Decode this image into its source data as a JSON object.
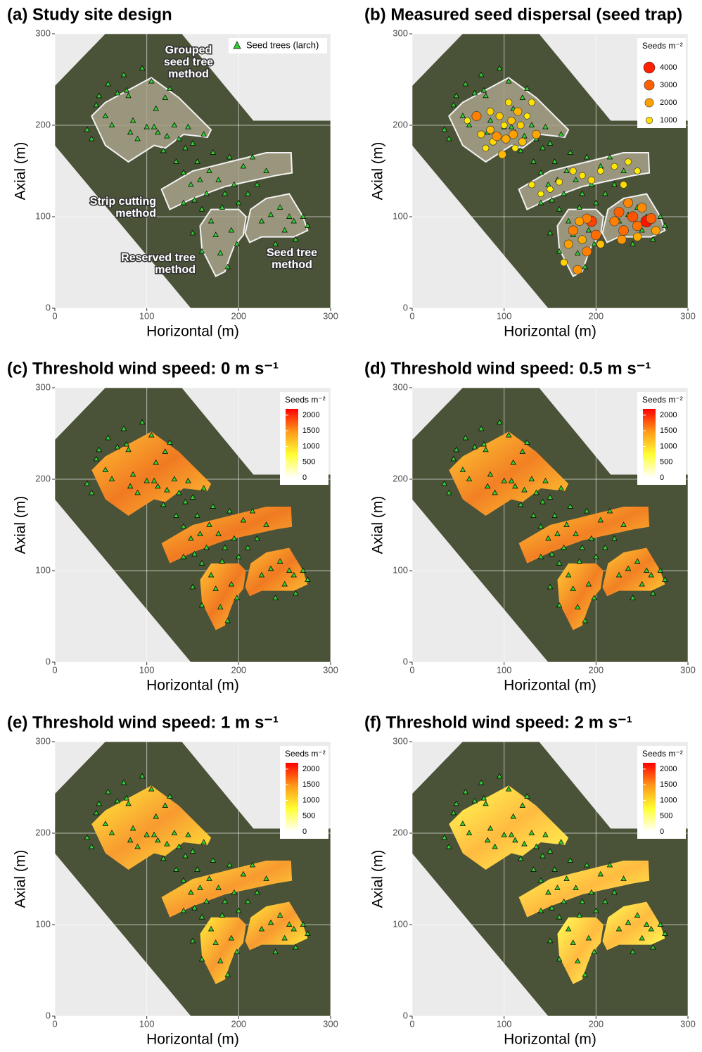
{
  "chart_data": [
    {
      "type": "scatter",
      "title": "(a) Study site design",
      "x_label": "Horizontal (m)",
      "y_label": "Axial (m)",
      "xlim": [
        0,
        300
      ],
      "ylim": [
        0,
        300
      ],
      "xticks": [
        0,
        100,
        200,
        300
      ],
      "yticks": [
        0,
        100,
        200,
        300
      ],
      "grid": true,
      "series": [
        {
          "name": "Seed trees (larch)",
          "color": "#33cc33",
          "x": [
            35,
            40,
            45,
            48,
            55,
            58,
            62,
            68,
            75,
            78,
            80,
            82,
            85,
            90,
            95,
            100,
            105,
            108,
            112,
            118,
            122,
            125,
            130,
            132,
            135,
            140,
            142,
            145,
            148,
            150,
            152,
            155,
            158,
            160,
            162,
            165,
            168,
            170,
            172,
            175,
            178,
            180,
            182,
            185,
            188,
            190,
            192,
            195,
            198,
            200,
            205,
            210,
            215,
            220,
            225,
            230,
            235,
            240,
            245,
            250,
            255,
            260,
            262,
            270,
            275,
            140,
            150,
            160,
            120,
            110
          ],
          "y": [
            195,
            185,
            222,
            232,
            210,
            245,
            200,
            235,
            255,
            238,
            232,
            192,
            205,
            185,
            262,
            198,
            248,
            198,
            192,
            172,
            188,
            240,
            200,
            160,
            185,
            148,
            175,
            198,
            135,
            180,
            118,
            160,
            140,
            108,
            190,
            125,
            150,
            95,
            170,
            80,
            140,
            60,
            110,
            125,
            45,
            165,
            85,
            135,
            70,
            115,
            155,
            125,
            165,
            135,
            95,
            150,
            102,
            70,
            110,
            85,
            100,
            95,
            75,
            100,
            90,
            115,
            82,
            62,
            230,
            218
          ]
        }
      ],
      "annotations": [
        [
          "Grouped",
          "seed tree",
          "method"
        ],
        [
          "Strip cutting",
          "method"
        ],
        [
          "Reserved tree",
          "method"
        ],
        [
          "Seed tree",
          "method"
        ]
      ]
    },
    {
      "type": "bubble",
      "title": "(b) Measured seed dispersal (seed trap)",
      "x_label": "Horizontal (m)",
      "y_label": "Axial (m)",
      "xlim": [
        0,
        300
      ],
      "ylim": [
        0,
        300
      ],
      "xticks": [
        0,
        100,
        200,
        300
      ],
      "yticks": [
        0,
        100,
        200,
        300
      ],
      "grid": true,
      "colors": [
        "#ffff00",
        "#ff0000"
      ],
      "series": [
        {
          "x": [
            60,
            70,
            75,
            80,
            85,
            88,
            92,
            95,
            100,
            102,
            105,
            108,
            110,
            112,
            115,
            118,
            120,
            125,
            130,
            135,
            98,
            85,
            130,
            140,
            150,
            160,
            175,
            185,
            195,
            205,
            220,
            235,
            245,
            230,
            165,
            170,
            175,
            180,
            185,
            190,
            195,
            200,
            205,
            190,
            182,
            220,
            225,
            230,
            235,
            240,
            245,
            250,
            255,
            260,
            265,
            228,
            245
          ],
          "y": [
            205,
            210,
            190,
            175,
            195,
            182,
            188,
            210,
            200,
            185,
            225,
            205,
            190,
            175,
            215,
            200,
            182,
            210,
            225,
            190,
            168,
            215,
            135,
            125,
            130,
            138,
            150,
            145,
            140,
            150,
            155,
            160,
            150,
            135,
            50,
            70,
            85,
            42,
            75,
            62,
            95,
            80,
            70,
            98,
            95,
            95,
            105,
            85,
            115,
            100,
            90,
            110,
            95,
            98,
            85,
            75,
            78
          ],
          "values": [
            800,
            2500,
            1200,
            900,
            1500,
            1100,
            2200,
            1300,
            900,
            1800,
            1000,
            1400,
            2000,
            900,
            1700,
            1200,
            1500,
            800,
            1000,
            1900,
            1600,
            1200,
            900,
            700,
            800,
            900,
            1000,
            900,
            1100,
            800,
            900,
            900,
            800,
            1100,
            1200,
            2000,
            2500,
            2200,
            1800,
            2500,
            3500,
            2800,
            1500,
            2500,
            2000,
            2500,
            3000,
            2800,
            2400,
            3200,
            2700,
            2300,
            4200,
            3000,
            2000,
            2200,
            1800
          ]
        }
      ],
      "legend": {
        "title": "Seeds m⁻²",
        "values": [
          4000,
          3000,
          2000,
          1000
        ]
      }
    },
    {
      "type": "heatmap",
      "title": "(c) Threshold wind speed: 0 m s⁻¹",
      "x_label": "Horizontal (m)",
      "y_label": "Axial (m)",
      "xlim": [
        0,
        300
      ],
      "ylim": [
        0,
        300
      ],
      "xticks": [
        0,
        100,
        200,
        300
      ],
      "yticks": [
        0,
        100,
        200,
        300
      ],
      "grid": true,
      "surface_colors": [
        "#ffc233",
        "#f07a22"
      ],
      "legend": {
        "title": "Seeds m⁻²",
        "lim": [
          0,
          2200
        ],
        "ticks": [
          0,
          500,
          1000,
          1500,
          2000
        ],
        "colors": [
          "#ffffff",
          "#ffff33",
          "#ff9a1a",
          "#ff0000"
        ]
      }
    },
    {
      "type": "heatmap",
      "title": "(d) Threshold wind speed: 0.5 m s⁻¹",
      "x_label": "Horizontal (m)",
      "y_label": "Axial (m)",
      "xlim": [
        0,
        300
      ],
      "ylim": [
        0,
        300
      ],
      "xticks": [
        0,
        100,
        200,
        300
      ],
      "yticks": [
        0,
        100,
        200,
        300
      ],
      "grid": true,
      "surface_colors": [
        "#ffcc33",
        "#f28024"
      ],
      "legend": {
        "title": "Seeds m⁻²",
        "lim": [
          0,
          2200
        ],
        "ticks": [
          0,
          500,
          1000,
          1500,
          2000
        ],
        "colors": [
          "#ffffff",
          "#ffff33",
          "#ff9a1a",
          "#ff0000"
        ]
      }
    },
    {
      "type": "heatmap",
      "title": "(e) Threshold wind speed: 1 m s⁻¹",
      "x_label": "Horizontal (m)",
      "y_label": "Axial (m)",
      "xlim": [
        0,
        300
      ],
      "ylim": [
        0,
        300
      ],
      "xticks": [
        0,
        100,
        200,
        300
      ],
      "yticks": [
        0,
        100,
        200,
        300
      ],
      "grid": true,
      "surface_colors": [
        "#ffef3a",
        "#f89a30"
      ],
      "legend": {
        "title": "Seeds m⁻²",
        "lim": [
          0,
          2200
        ],
        "ticks": [
          0,
          500,
          1000,
          1500,
          2000
        ],
        "colors": [
          "#ffffff",
          "#ffff33",
          "#ff9a1a",
          "#ff0000"
        ]
      }
    },
    {
      "type": "heatmap",
      "title": "(f) Threshold wind speed: 2 m s⁻¹",
      "x_label": "Horizontal (m)",
      "y_label": "Axial (m)",
      "xlim": [
        0,
        300
      ],
      "ylim": [
        0,
        300
      ],
      "xticks": [
        0,
        100,
        200,
        300
      ],
      "yticks": [
        0,
        100,
        200,
        300
      ],
      "grid": true,
      "surface_colors": [
        "#ffff55",
        "#ffbb40"
      ],
      "legend": {
        "title": "Seeds m⁻²",
        "lim": [
          0,
          2200
        ],
        "ticks": [
          0,
          500,
          1000,
          1500,
          2000
        ],
        "colors": [
          "#ffffff",
          "#ffff33",
          "#ff9a1a",
          "#ff0000"
        ]
      }
    }
  ]
}
